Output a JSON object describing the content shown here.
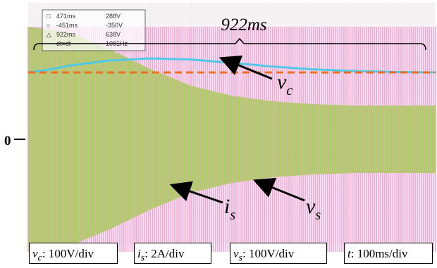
{
  "chart_data": {
    "type": "line",
    "title": "",
    "x_unit": "ms",
    "duration_ms": 1000,
    "series": [
      {
        "key": "v_c",
        "x": [
          0,
          50,
          100,
          200,
          300,
          400,
          500,
          600,
          700,
          800,
          900,
          1000
        ],
        "y": [
          0.0,
          0.2,
          0.48,
          0.85,
          1.0,
          0.92,
          0.68,
          0.42,
          0.22,
          0.1,
          0.03,
          0.0
        ]
      },
      {
        "key": "i_s_envelope",
        "x": [
          0,
          100,
          200,
          300,
          400,
          500,
          600,
          700,
          800,
          1000
        ],
        "y": [
          4.0,
          3.8,
          3.2,
          2.5,
          1.9,
          1.55,
          1.35,
          1.25,
          1.2,
          1.2
        ]
      },
      {
        "key": "v_s_envelope",
        "x": [
          0,
          1000
        ],
        "y": [
          4.0,
          4.0
        ]
      }
    ],
    "reference_level_label": "0",
    "duration_label": "922ms",
    "series_labels": {
      "v_c": "v",
      "v_c_sub": "c",
      "i_s": "i",
      "i_s_sub": "s",
      "v_s": "v",
      "v_s_sub": "s"
    },
    "cursor_readout": [
      {
        "left": "471ms",
        "right": "288V"
      },
      {
        "left": "-451ms",
        "right": "-350V"
      },
      {
        "left": "922ms",
        "right": "638V"
      },
      {
        "left": "dt=dt",
        "right": "1081Hz"
      }
    ],
    "scale_labels": [
      {
        "sym": "v",
        "sub": "c",
        "text": ": 100V/div"
      },
      {
        "sym": "i",
        "sub": "s",
        "text": ": 2A/div"
      },
      {
        "sym": "v",
        "sub": "s",
        "text": ": 100V/div"
      },
      {
        "sym": "t",
        "sub": "",
        "text": ": 100ms/div"
      }
    ],
    "colors": {
      "background": "#f6f2f4",
      "v_s": "#f2a6d8",
      "i_s": "#9fd24a",
      "v_c": "#4fc9e6",
      "reference": "#f0701f",
      "grid": "#d9d9d9"
    },
    "grid": true
  }
}
